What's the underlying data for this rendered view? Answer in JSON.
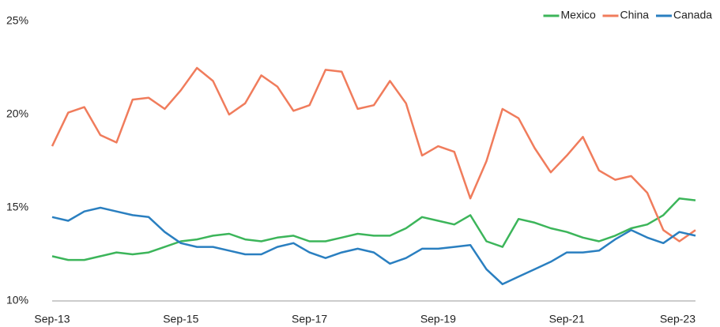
{
  "chart_data": {
    "type": "line",
    "categories": [
      "Sep-13",
      null,
      null,
      null,
      null,
      null,
      null,
      null,
      "Sep-15",
      null,
      null,
      null,
      null,
      null,
      null,
      null,
      "Sep-17",
      null,
      null,
      null,
      null,
      null,
      null,
      null,
      "Sep-19",
      null,
      null,
      null,
      null,
      null,
      null,
      null,
      "Sep-21",
      null,
      null,
      null,
      null,
      null,
      null,
      null,
      "Sep-23"
    ],
    "series": [
      {
        "name": "Mexico",
        "color": "#3cb55a",
        "values": [
          12.4,
          12.2,
          12.2,
          12.4,
          12.6,
          12.5,
          12.6,
          12.9,
          13.2,
          13.3,
          13.5,
          13.6,
          13.3,
          13.2,
          13.4,
          13.5,
          13.2,
          13.2,
          13.4,
          13.6,
          13.5,
          13.5,
          13.9,
          14.5,
          14.3,
          14.1,
          14.6,
          13.2,
          12.9,
          14.4,
          14.2,
          13.9,
          13.7,
          13.4,
          13.2,
          13.5,
          13.9,
          14.1,
          14.6,
          15.5,
          15.4
        ]
      },
      {
        "name": "China",
        "color": "#f07c5c",
        "values": [
          18.3,
          20.1,
          20.4,
          18.9,
          18.5,
          20.8,
          20.9,
          20.3,
          21.3,
          22.5,
          21.8,
          20.0,
          20.6,
          22.1,
          21.5,
          20.2,
          20.5,
          22.4,
          22.3,
          20.3,
          20.5,
          21.8,
          20.6,
          17.8,
          18.3,
          18.0,
          15.5,
          17.5,
          20.3,
          19.8,
          18.2,
          16.9,
          17.8,
          18.8,
          17.0,
          16.5,
          16.7,
          15.8,
          13.8,
          13.2,
          13.8
        ]
      },
      {
        "name": "Canada",
        "color": "#2a7fc0",
        "values": [
          14.5,
          14.3,
          14.8,
          15.0,
          14.8,
          14.6,
          14.5,
          13.7,
          13.1,
          12.9,
          12.9,
          12.7,
          12.5,
          12.5,
          12.9,
          13.1,
          12.6,
          12.3,
          12.6,
          12.8,
          12.6,
          12.0,
          12.3,
          12.8,
          12.8,
          12.9,
          13.0,
          11.7,
          10.9,
          11.3,
          11.7,
          12.1,
          12.6,
          12.6,
          12.7,
          13.3,
          13.8,
          13.4,
          13.1,
          13.7,
          13.5
        ]
      }
    ],
    "ylim": [
      10,
      25
    ],
    "yticks": [
      {
        "value": 10,
        "label": "10%"
      },
      {
        "value": 15,
        "label": "15%"
      },
      {
        "value": 20,
        "label": "20%"
      },
      {
        "value": 25,
        "label": "25%"
      }
    ],
    "grid": false,
    "legend": "top-right"
  }
}
